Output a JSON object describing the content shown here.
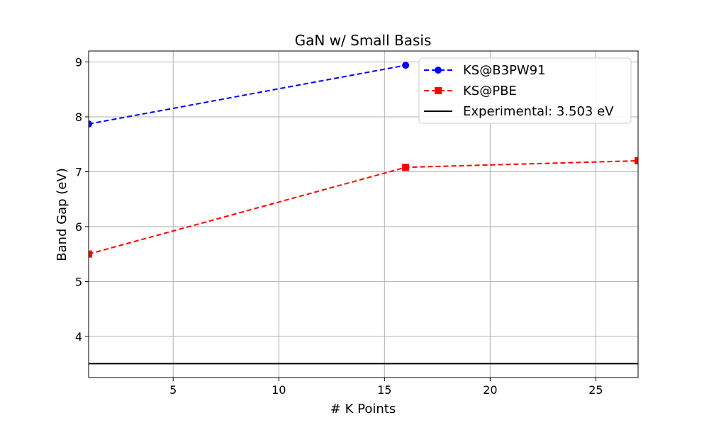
{
  "chart_data": {
    "type": "line",
    "title": "GaN w/ Small Basis",
    "xlabel": "# K Points",
    "ylabel": "Band Gap (eV)",
    "xlim": [
      1,
      27
    ],
    "ylim": [
      3.25,
      9.2
    ],
    "xticks": [
      5,
      10,
      15,
      20,
      25
    ],
    "yticks": [
      4,
      5,
      6,
      7,
      8,
      9
    ],
    "grid": true,
    "legend_position": "top-right",
    "series": [
      {
        "name": "KS@B3PW91",
        "color": "#0000ff",
        "marker": "circle",
        "linestyle": "dashed",
        "x": [
          1,
          16
        ],
        "y": [
          7.87,
          8.94
        ]
      },
      {
        "name": "KS@PBE",
        "color": "#ff0000",
        "marker": "square",
        "linestyle": "dashed",
        "x": [
          1,
          16,
          27
        ],
        "y": [
          5.5,
          7.08,
          7.2
        ]
      }
    ],
    "hlines": [
      {
        "name": "Experimental: 3.503 eV",
        "y": 3.503,
        "color": "#000000",
        "linestyle": "solid"
      }
    ]
  }
}
